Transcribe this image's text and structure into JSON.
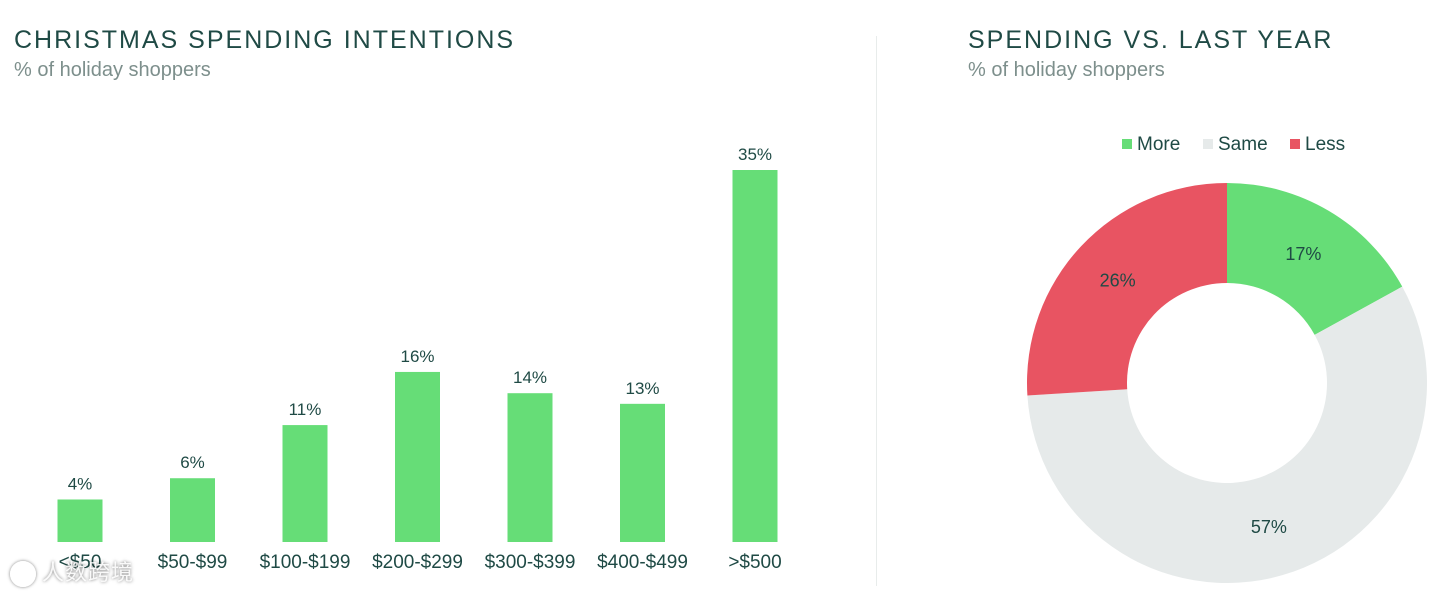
{
  "chart_data": [
    {
      "type": "bar",
      "title": "CHRISTMAS SPENDING INTENTIONS",
      "subtitle": "% of holiday shoppers",
      "categories": [
        "<$50",
        "$50-$99",
        "$100-$199",
        "$200-$299",
        "$300-$399",
        "$400-$499",
        ">$500"
      ],
      "values": [
        4,
        6,
        11,
        16,
        14,
        13,
        35
      ],
      "value_labels": [
        "4%",
        "6%",
        "11%",
        "16%",
        "14%",
        "13%",
        "35%"
      ],
      "ylim": [
        0,
        35
      ],
      "color": "#66dd77"
    },
    {
      "type": "pie",
      "donut": true,
      "title": "SPENDING VS. LAST YEAR",
      "subtitle": "% of holiday shoppers",
      "legend_position": "top",
      "slices": [
        {
          "name": "More",
          "value": 17,
          "label": "17%",
          "color": "#66dd77"
        },
        {
          "name": "Same",
          "value": 57,
          "label": "57%",
          "color": "#e6eaea"
        },
        {
          "name": "Less",
          "value": 26,
          "label": "26%",
          "color": "#e85462"
        }
      ]
    }
  ],
  "watermark": "人数跨境"
}
